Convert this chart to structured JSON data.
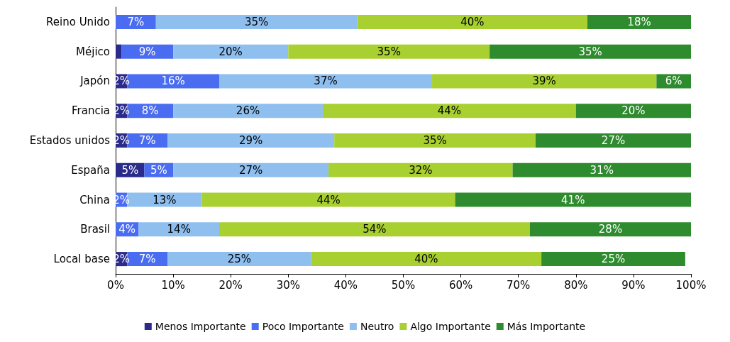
{
  "chart_data": {
    "type": "bar",
    "orientation": "horizontal",
    "stacked": true,
    "grid": false,
    "legend": "bottom",
    "categories": [
      "Reino Unido",
      "Méjico",
      "Japón",
      "Francia",
      "Estados unidos",
      "España",
      "China",
      "Brasil",
      "Local base"
    ],
    "xlim": [
      0,
      100
    ],
    "xticks": [
      {
        "value": 0,
        "label": "0%"
      },
      {
        "value": 10,
        "label": "10%"
      },
      {
        "value": 20,
        "label": "20%"
      },
      {
        "value": 30,
        "label": "30%"
      },
      {
        "value": 40,
        "label": "40%"
      },
      {
        "value": 50,
        "label": "50%"
      },
      {
        "value": 60,
        "label": "60%"
      },
      {
        "value": 70,
        "label": "70%"
      },
      {
        "value": 80,
        "label": "80%"
      },
      {
        "value": 90,
        "label": "90%"
      },
      {
        "value": 100,
        "label": "100%"
      }
    ],
    "series": [
      {
        "name": "Menos Importante",
        "color": "#2b2b8c",
        "values": [
          0,
          1,
          2,
          2,
          2,
          5,
          0,
          0,
          2
        ],
        "value_labels": [
          null,
          null,
          "2%",
          "2%",
          "2%",
          "5%",
          null,
          null,
          "2%"
        ]
      },
      {
        "name": "Poco Importante",
        "color": "#4a6cf0",
        "values": [
          7,
          9,
          16,
          8,
          7,
          5,
          2,
          4,
          7
        ],
        "value_labels": [
          "7%",
          "9%",
          "16%",
          "8%",
          "7%",
          "5%",
          "2%",
          "4%",
          "7%"
        ]
      },
      {
        "name": "Neutro",
        "color": "#8fbfef",
        "values": [
          35,
          20,
          37,
          26,
          29,
          27,
          13,
          14,
          25
        ],
        "value_labels": [
          "35%",
          "20%",
          "37%",
          "26%",
          "29%",
          "27%",
          "13%",
          "14%",
          "25%"
        ]
      },
      {
        "name": "Algo Importante",
        "color": "#a8d030",
        "values": [
          40,
          35,
          39,
          44,
          35,
          32,
          44,
          54,
          40
        ],
        "value_labels": [
          "40%",
          "35%",
          "39%",
          "44%",
          "35%",
          "32%",
          "44%",
          "54%",
          "40%"
        ]
      },
      {
        "name": "Más Importante",
        "color": "#2e8b2e",
        "values": [
          18,
          35,
          6,
          20,
          27,
          31,
          41,
          28,
          25
        ],
        "value_labels": [
          "18%",
          "35%",
          "6%",
          "20%",
          "27%",
          "31%",
          "41%",
          "28%",
          "25%"
        ]
      }
    ]
  }
}
